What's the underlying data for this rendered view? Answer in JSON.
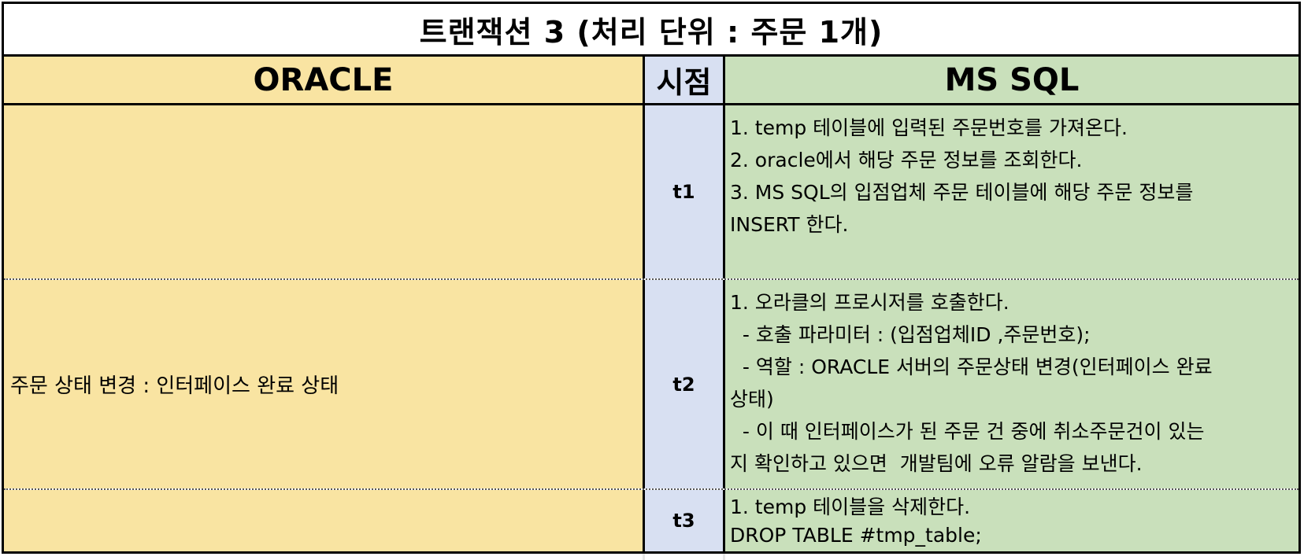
{
  "title": "트랜잭션 3 (처리 단위 : 주문 1개)",
  "headers": {
    "oracle": "ORACLE",
    "time": "시점",
    "mssql": "MS SQL"
  },
  "rows": [
    {
      "oracle": "",
      "time": "t1",
      "mssql": [
        "1. temp 테이블에 입력된 주문번호를 가져온다.",
        "2. oracle에서 해당 주문 정보를 조회한다.",
        "3. MS SQL의 입점업체 주문 테이블에 해당 주문 정보를",
        "INSERT 한다."
      ]
    },
    {
      "oracle": "주문 상태 변경 : 인터페이스 완료 상태",
      "time": "t2",
      "mssql": [
        "1. 오라클의 프로시저를 호출한다.",
        "  - 호출 파라미터 : (입점업체ID ,주문번호);",
        "  - 역할 : ORACLE 서버의 주문상태 변경(인터페이스 완료",
        "상태)",
        "  - 이 때 인터페이스가 된 주문 건 중에 취소주문건이 있는",
        "지 확인하고 있으면  개발팀에 오류 알람을 보낸다."
      ]
    },
    {
      "oracle": "",
      "time": "t3",
      "mssql": [
        "1. temp 테이블을 삭제한다.",
        "DROP TABLE #tmp_table;"
      ]
    }
  ],
  "colors": {
    "oracle_bg": "#f9e4a2",
    "time_bg": "#d8e0f2",
    "mssql_bg": "#c9e0bb"
  }
}
